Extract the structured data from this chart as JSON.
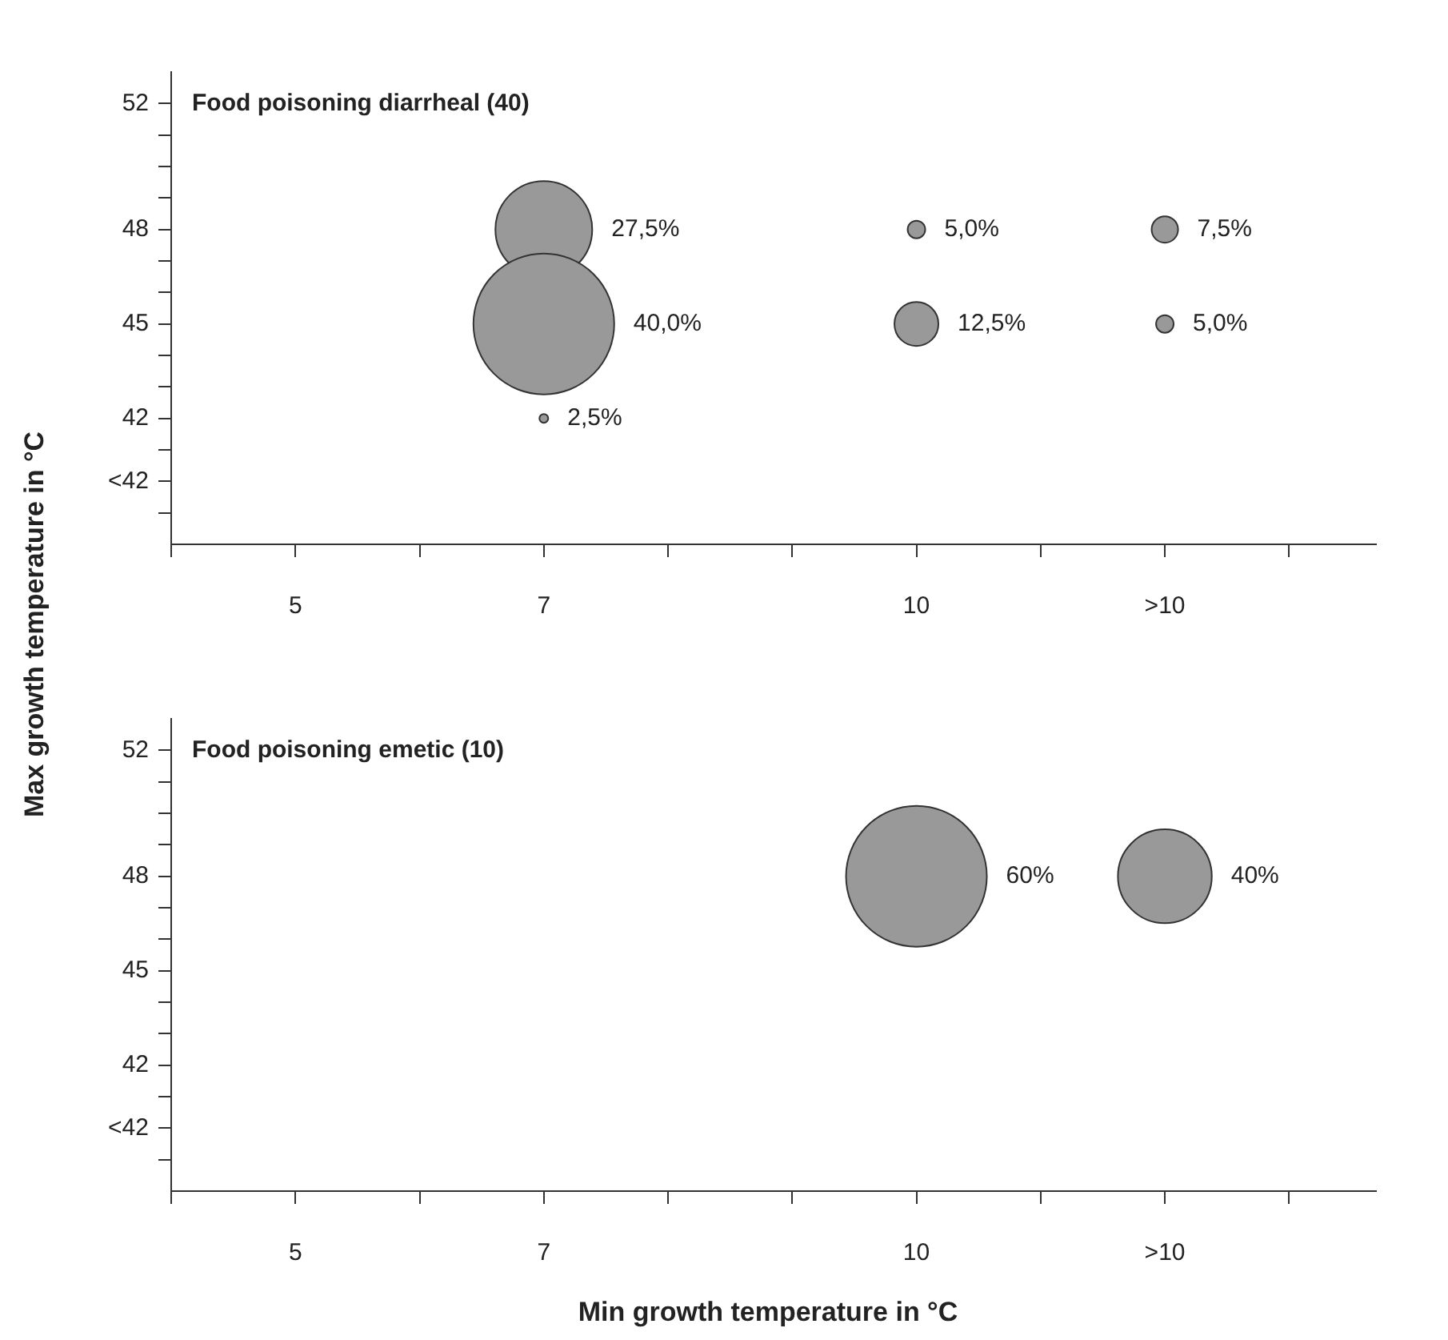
{
  "chart_data": [
    {
      "type": "bubble",
      "title": "Food poisoning diarrheal (40)",
      "ylabel": "Max growth temperature in °C",
      "series": [
        {
          "color": "#999999",
          "x": [
            7,
            7,
            7,
            10,
            10,
            12,
            12
          ],
          "values": [
            48,
            45,
            42,
            48,
            45,
            48,
            45
          ],
          "sizes": [
            0.4727,
            1,
            0.0039,
            0.0156,
            0.0977,
            0.0352,
            0.0156
          ]
        }
      ],
      "annotations": [
        "27,5%",
        "40,0%",
        "2,5%",
        "5,0%",
        "12,5%",
        "7,5%",
        "5,0%"
      ],
      "xlim": [
        4,
        13.7
      ],
      "xticks": [
        {
          "value": 4,
          "label": null
        },
        5,
        {
          "value": 6,
          "label": null
        },
        7,
        {
          "value": 8,
          "label": null
        },
        {
          "value": 9,
          "label": null
        },
        10,
        {
          "value": 11,
          "label": null
        },
        {
          "value": 12,
          "label": ">10"
        },
        {
          "value": 13,
          "label": null
        }
      ],
      "ylim": [
        38,
        53
      ],
      "yticks": [
        {
          "value": 39,
          "label": null
        },
        {
          "value": 40,
          "label": "<42"
        },
        {
          "value": 41,
          "label": null
        },
        42,
        {
          "value": 43,
          "label": null
        },
        {
          "value": 44,
          "label": null
        },
        45,
        {
          "value": 46,
          "label": null
        },
        {
          "value": 47,
          "label": null
        },
        48,
        {
          "value": 49,
          "label": null
        },
        {
          "value": 50,
          "label": null
        },
        {
          "value": 51,
          "label": null
        },
        52
      ]
    },
    {
      "type": "bubble",
      "title": "Food poisoning emetic (10)",
      "xlabel": "Min growth temperature in °C",
      "series": [
        {
          "color": "#999999",
          "x": [
            10,
            12
          ],
          "values": [
            48,
            48
          ],
          "sizes": [
            1,
            0.4444
          ]
        }
      ],
      "annotations": [
        "60%",
        "40%"
      ],
      "xlim": [
        4,
        13.7
      ],
      "xticks": [
        {
          "value": 4,
          "label": null
        },
        5,
        {
          "value": 6,
          "label": null
        },
        7,
        {
          "value": 8,
          "label": null
        },
        {
          "value": 9,
          "label": null
        },
        10,
        {
          "value": 11,
          "label": null
        },
        {
          "value": 12,
          "label": ">10"
        },
        {
          "value": 13,
          "label": null
        }
      ],
      "ylim": [
        38,
        53
      ],
      "yticks": [
        {
          "value": 39,
          "label": null
        },
        {
          "value": 40,
          "label": "<42"
        },
        {
          "value": 41,
          "label": null
        },
        42,
        {
          "value": 43,
          "label": null
        },
        {
          "value": 44,
          "label": null
        },
        45,
        {
          "value": 46,
          "label": null
        },
        {
          "value": 47,
          "label": null
        },
        48,
        {
          "value": 49,
          "label": null
        },
        {
          "value": 50,
          "label": null
        },
        {
          "value": 51,
          "label": null
        },
        52
      ]
    }
  ]
}
